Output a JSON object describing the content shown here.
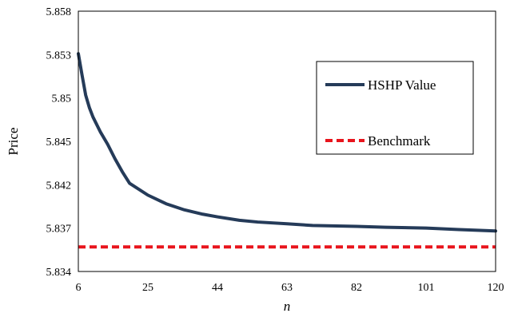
{
  "chart_data": {
    "type": "line",
    "title": "",
    "xlabel": "n",
    "ylabel": "Price",
    "x_ticks": [
      "6",
      "25",
      "44",
      "63",
      "82",
      "101",
      "120"
    ],
    "x_tick_values": [
      6,
      25,
      44,
      63,
      82,
      101,
      120
    ],
    "y_ticks": [
      "5.858",
      "5.853",
      "5.85",
      "5.845",
      "5.842",
      "5.837",
      "5.834"
    ],
    "y_tick_values": [
      5.858,
      5.853,
      5.85,
      5.845,
      5.842,
      5.837,
      5.834
    ],
    "xlim": [
      6,
      120
    ],
    "ylim": [
      5.834,
      5.858
    ],
    "grid": false,
    "legend_position": "top-right",
    "series": [
      {
        "name": "HSHP Value",
        "color": "#253b59",
        "style": "solid",
        "x": [
          6,
          7,
          8,
          9,
          10,
          12,
          14,
          16,
          18,
          20,
          25,
          30,
          35,
          40,
          44,
          50,
          55,
          63,
          70,
          82,
          90,
          101,
          110,
          120
        ],
        "y": [
          5.8531,
          5.8516,
          5.8502,
          5.8489,
          5.8478,
          5.8461,
          5.8448,
          5.8438,
          5.8429,
          5.8421,
          5.8408,
          5.8398,
          5.8391,
          5.8386,
          5.8383,
          5.8379,
          5.8377,
          5.8375,
          5.8373,
          5.8372,
          5.8371,
          5.837,
          5.8369,
          5.8368
        ]
      },
      {
        "name": "Benchmark",
        "color": "#e8141c",
        "style": "dashed",
        "x": [
          6,
          120
        ],
        "y": [
          5.8357,
          5.8357
        ]
      }
    ]
  }
}
